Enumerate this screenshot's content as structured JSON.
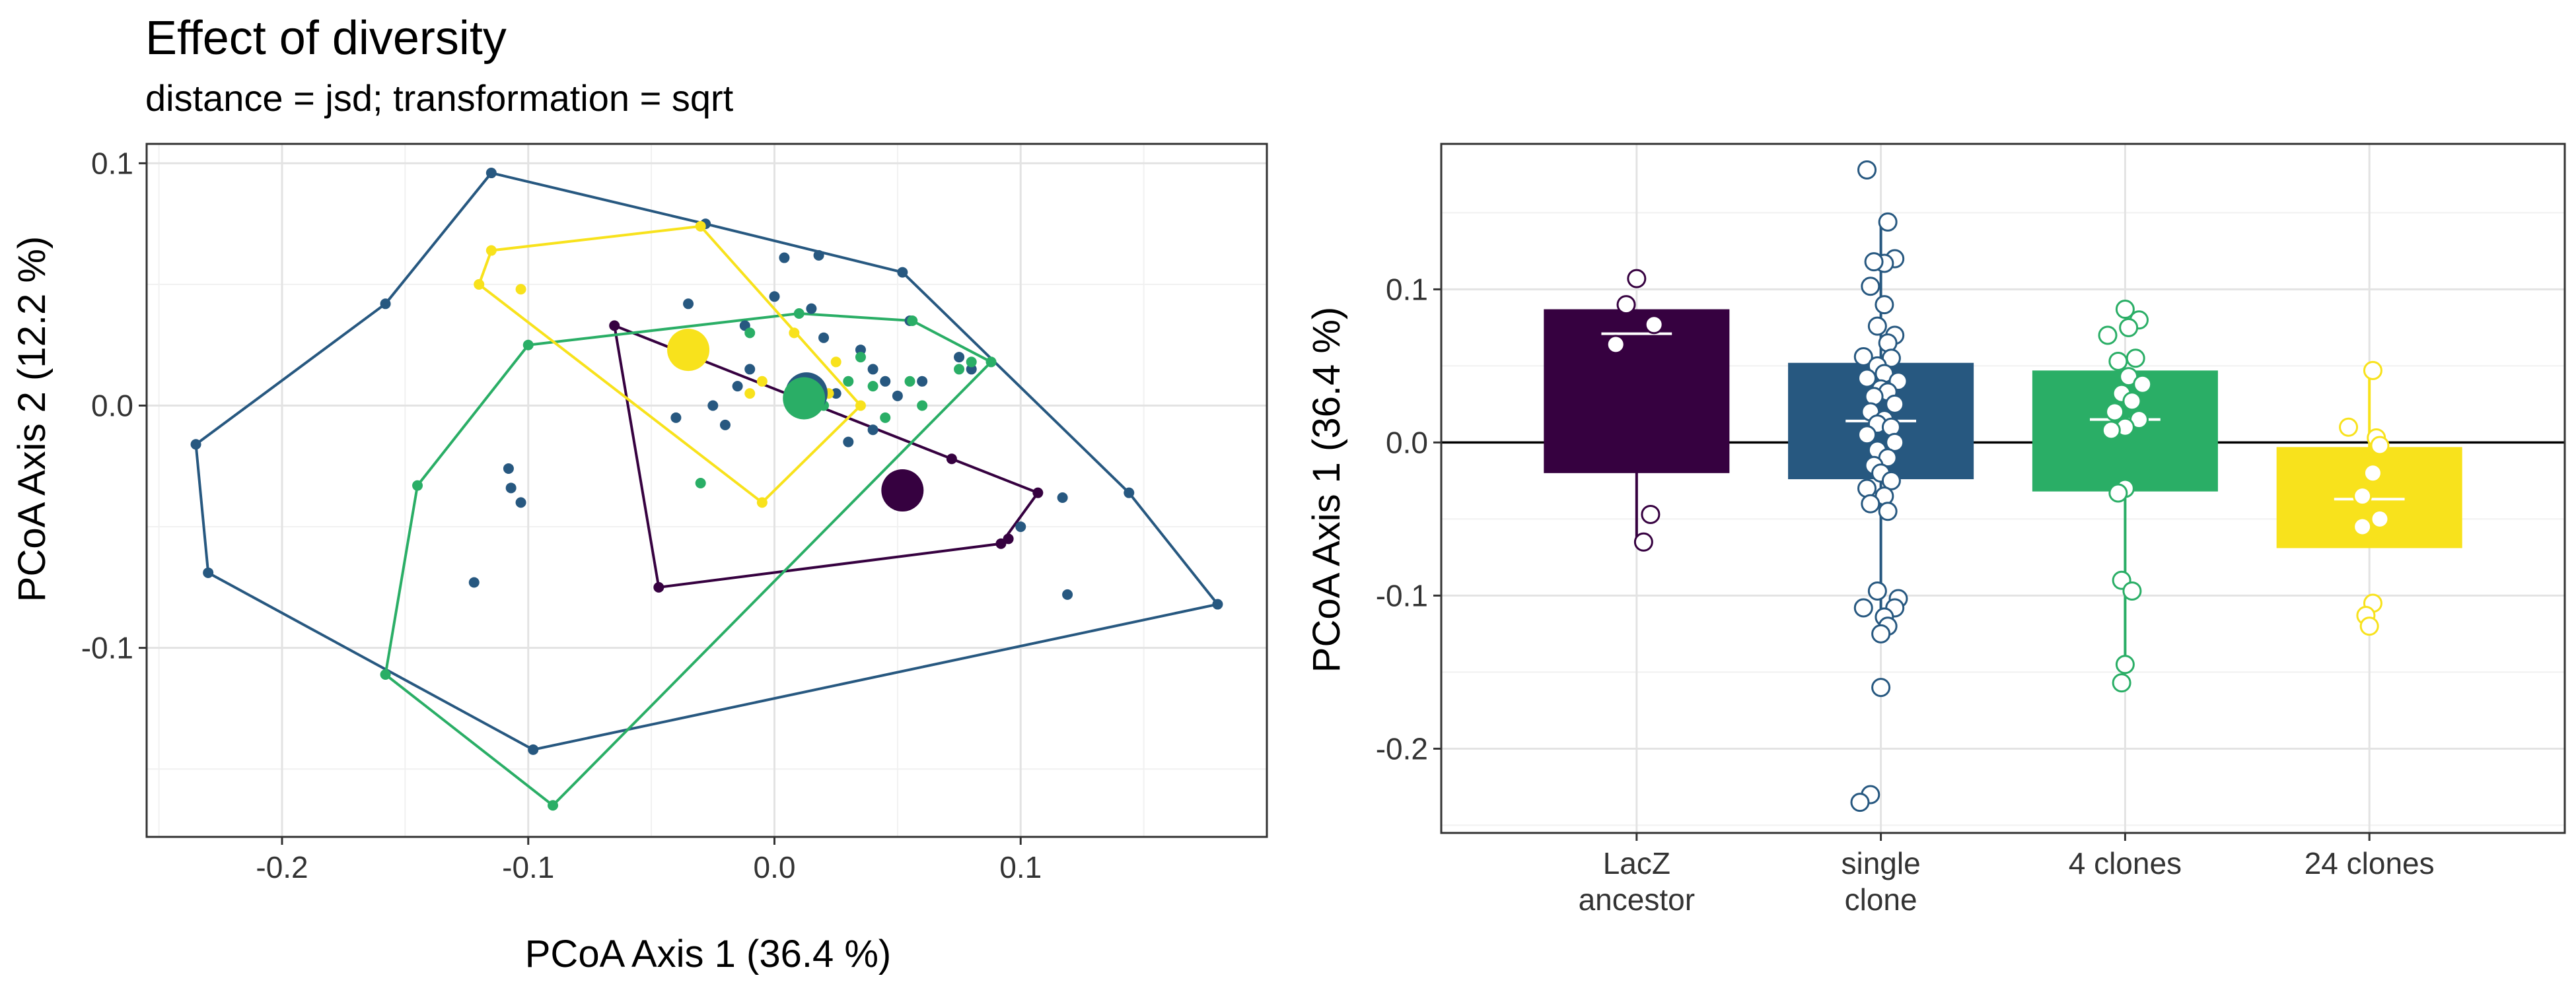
{
  "title": "Effect of diversity",
  "subtitle": "distance = jsd; transformation = sqrt",
  "colors": {
    "LacZ ancestor": "#360140",
    "single clone": "#275880",
    "4 clones": "#2aae66",
    "24 clones": "#f8e21c",
    "grid_major": "#e3e3e3",
    "grid_minor": "#f1f1f1",
    "panel_border": "#333333"
  },
  "chart_data": [
    {
      "type": "scatter",
      "xlabel": "PCoA Axis 1 (36.4 %)",
      "ylabel": "PCoA Axis 2 (12.2 %)",
      "xlim": [
        -0.255,
        0.2
      ],
      "ylim": [
        -0.178,
        0.108
      ],
      "xticks": [
        -0.2,
        -0.1,
        0.0,
        0.1
      ],
      "xtick_labels": [
        "-0.2",
        "-0.1",
        "0.0",
        "0.1"
      ],
      "yticks": [
        -0.1,
        0.0,
        0.1
      ],
      "ytick_labels": [
        "-0.1",
        "0.0",
        "0.1"
      ],
      "grid": true,
      "legend": "none",
      "series": [
        {
          "name": "LacZ ancestor",
          "points": [
            [
              -0.065,
              0.033
            ],
            [
              -0.047,
              -0.075
            ],
            [
              0.107,
              -0.036
            ],
            [
              0.092,
              -0.057
            ],
            [
              0.072,
              -0.022
            ],
            [
              0.095,
              -0.055
            ]
          ],
          "hull": [
            [
              -0.065,
              0.033
            ],
            [
              -0.047,
              -0.075
            ],
            [
              0.092,
              -0.057
            ],
            [
              0.107,
              -0.036
            ],
            [
              0.072,
              -0.022
            ]
          ],
          "centroid": [
            0.052,
            -0.035
          ]
        },
        {
          "name": "single clone",
          "points": [
            [
              -0.115,
              0.096
            ],
            [
              -0.158,
              0.042
            ],
            [
              -0.235,
              -0.016
            ],
            [
              -0.23,
              -0.069
            ],
            [
              -0.098,
              -0.142
            ],
            [
              0.18,
              -0.082
            ],
            [
              0.144,
              -0.036
            ],
            [
              0.052,
              0.055
            ],
            [
              -0.028,
              0.075
            ],
            [
              0.018,
              0.062
            ],
            [
              0.004,
              0.061
            ],
            [
              0.0,
              0.045
            ],
            [
              0.055,
              0.035
            ],
            [
              0.075,
              0.02
            ],
            [
              0.08,
              0.015
            ],
            [
              0.015,
              0.04
            ],
            [
              0.035,
              0.023
            ],
            [
              0.04,
              0.015
            ],
            [
              0.025,
              0.005
            ],
            [
              0.045,
              0.01
            ],
            [
              0.012,
              0.01
            ],
            [
              -0.015,
              0.008
            ],
            [
              -0.025,
              0.0
            ],
            [
              -0.04,
              -0.005
            ],
            [
              -0.02,
              -0.008
            ],
            [
              0.03,
              -0.015
            ],
            [
              -0.108,
              -0.026
            ],
            [
              -0.107,
              -0.034
            ],
            [
              -0.103,
              -0.04
            ],
            [
              -0.122,
              -0.073
            ],
            [
              -0.035,
              0.042
            ],
            [
              -0.012,
              0.033
            ],
            [
              0.05,
              0.004
            ],
            [
              0.117,
              -0.038
            ],
            [
              0.119,
              -0.078
            ],
            [
              0.1,
              -0.05
            ],
            [
              0.04,
              -0.01
            ],
            [
              0.06,
              0.01
            ],
            [
              0.02,
              0.028
            ],
            [
              -0.01,
              0.015
            ]
          ],
          "hull": [
            [
              -0.115,
              0.096
            ],
            [
              -0.028,
              0.075
            ],
            [
              0.052,
              0.055
            ],
            [
              0.144,
              -0.036
            ],
            [
              0.18,
              -0.082
            ],
            [
              -0.098,
              -0.142
            ],
            [
              -0.23,
              -0.069
            ],
            [
              -0.235,
              -0.016
            ],
            [
              -0.158,
              0.042
            ]
          ],
          "centroid": [
            0.013,
            0.005
          ]
        },
        {
          "name": "4 clones",
          "points": [
            [
              -0.1,
              0.025
            ],
            [
              -0.145,
              -0.033
            ],
            [
              -0.158,
              -0.111
            ],
            [
              -0.09,
              -0.165
            ],
            [
              0.088,
              0.018
            ],
            [
              0.056,
              0.035
            ],
            [
              0.01,
              0.038
            ],
            [
              0.035,
              0.02
            ],
            [
              -0.01,
              0.03
            ],
            [
              0.075,
              0.015
            ],
            [
              0.02,
              0.0
            ],
            [
              0.04,
              0.008
            ],
            [
              -0.03,
              -0.032
            ],
            [
              0.03,
              0.01
            ],
            [
              0.055,
              0.01
            ],
            [
              0.08,
              0.018
            ],
            [
              0.045,
              -0.005
            ],
            [
              0.06,
              0.0
            ]
          ],
          "hull": [
            [
              -0.1,
              0.025
            ],
            [
              0.01,
              0.038
            ],
            [
              0.056,
              0.035
            ],
            [
              0.088,
              0.018
            ],
            [
              -0.09,
              -0.165
            ],
            [
              -0.158,
              -0.111
            ],
            [
              -0.145,
              -0.033
            ]
          ],
          "centroid": [
            0.012,
            0.003
          ]
        },
        {
          "name": "24 clones",
          "points": [
            [
              -0.12,
              0.05
            ],
            [
              -0.115,
              0.064
            ],
            [
              -0.103,
              0.048
            ],
            [
              -0.03,
              0.074
            ],
            [
              -0.005,
              -0.04
            ],
            [
              0.022,
              0.005
            ],
            [
              0.035,
              0.0
            ],
            [
              -0.01,
              0.005
            ],
            [
              0.025,
              0.018
            ],
            [
              0.008,
              0.03
            ],
            [
              -0.005,
              0.01
            ]
          ],
          "hull": [
            [
              -0.12,
              0.05
            ],
            [
              -0.115,
              0.064
            ],
            [
              -0.03,
              0.074
            ],
            [
              0.035,
              0.0
            ],
            [
              -0.005,
              -0.04
            ]
          ],
          "centroid": [
            -0.035,
            0.023
          ]
        }
      ]
    },
    {
      "type": "bar",
      "xlabel": "",
      "ylabel": "PCoA Axis 1 (36.4 %)",
      "categories": [
        "LacZ\nancestor",
        "single\nclone",
        "4 clones",
        "24 clones"
      ],
      "ylim": [
        -0.255,
        0.195
      ],
      "yticks": [
        -0.2,
        -0.1,
        0.0,
        0.1
      ],
      "ytick_labels": [
        "-0.2",
        "-0.1",
        "0.0",
        "0.1"
      ],
      "grid": true,
      "legend": "none",
      "reference_line": 0.0,
      "boxes": [
        {
          "lower": -0.02,
          "upper": 0.087,
          "median": 0.071,
          "whisker_low": -0.063,
          "whisker_high": 0.087
        },
        {
          "lower": -0.024,
          "upper": 0.052,
          "median": 0.014,
          "whisker_low": -0.125,
          "whisker_high": 0.145
        },
        {
          "lower": -0.032,
          "upper": 0.047,
          "median": 0.015,
          "whisker_low": -0.145,
          "whisker_high": 0.047
        },
        {
          "lower": -0.069,
          "upper": -0.003,
          "median": -0.037,
          "whisker_low": -0.069,
          "whisker_high": 0.045
        }
      ],
      "points": [
        [
          [
            0.107,
            0.0
          ],
          [
            0.09,
            -0.15
          ],
          [
            0.077,
            0.25
          ],
          [
            0.064,
            -0.3
          ],
          [
            -0.047,
            0.2
          ],
          [
            -0.065,
            0.1
          ]
        ],
        [
          [
            0.178,
            -0.2
          ],
          [
            0.144,
            0.1
          ],
          [
            0.12,
            0.2
          ],
          [
            0.117,
            0.05
          ],
          [
            0.118,
            -0.1
          ],
          [
            0.102,
            -0.15
          ],
          [
            0.09,
            0.05
          ],
          [
            0.076,
            -0.05
          ],
          [
            0.07,
            0.2
          ],
          [
            0.065,
            0.1
          ],
          [
            0.056,
            -0.25
          ],
          [
            0.055,
            0.15
          ],
          [
            0.05,
            -0.05
          ],
          [
            0.045,
            0.05
          ],
          [
            0.042,
            -0.2
          ],
          [
            0.04,
            0.25
          ],
          [
            0.035,
            0.0
          ],
          [
            0.033,
            0.1
          ],
          [
            0.03,
            -0.1
          ],
          [
            0.025,
            0.2
          ],
          [
            0.02,
            -0.15
          ],
          [
            0.015,
            0.05
          ],
          [
            0.012,
            -0.05
          ],
          [
            0.01,
            0.15
          ],
          [
            0.005,
            -0.2
          ],
          [
            0.0,
            0.2
          ],
          [
            -0.005,
            -0.05
          ],
          [
            -0.01,
            0.1
          ],
          [
            -0.015,
            -0.1
          ],
          [
            -0.02,
            0.0
          ],
          [
            -0.025,
            0.15
          ],
          [
            -0.03,
            -0.2
          ],
          [
            -0.035,
            0.05
          ],
          [
            -0.04,
            -0.15
          ],
          [
            -0.045,
            0.1
          ],
          [
            -0.097,
            -0.05
          ],
          [
            -0.102,
            0.25
          ],
          [
            -0.108,
            0.2
          ],
          [
            -0.108,
            -0.25
          ],
          [
            -0.114,
            0.05
          ],
          [
            -0.12,
            0.1
          ],
          [
            -0.125,
            0.0
          ],
          [
            -0.16,
            0.0
          ],
          [
            -0.23,
            -0.15
          ],
          [
            -0.235,
            -0.3
          ]
        ],
        [
          [
            0.087,
            0.0
          ],
          [
            0.08,
            0.2
          ],
          [
            0.075,
            0.05
          ],
          [
            0.07,
            -0.25
          ],
          [
            0.055,
            0.15
          ],
          [
            0.053,
            -0.1
          ],
          [
            0.043,
            0.05
          ],
          [
            0.038,
            0.25
          ],
          [
            0.032,
            -0.05
          ],
          [
            0.027,
            0.1
          ],
          [
            0.02,
            -0.15
          ],
          [
            0.015,
            0.2
          ],
          [
            0.01,
            0.0
          ],
          [
            0.008,
            -0.2
          ],
          [
            -0.03,
            0.0
          ],
          [
            -0.033,
            -0.1
          ],
          [
            -0.09,
            -0.05
          ],
          [
            -0.097,
            0.1
          ],
          [
            -0.145,
            0.0
          ],
          [
            -0.157,
            -0.05
          ]
        ],
        [
          [
            0.047,
            0.05
          ],
          [
            0.01,
            -0.3
          ],
          [
            0.003,
            0.1
          ],
          [
            -0.002,
            0.15
          ],
          [
            -0.02,
            0.05
          ],
          [
            -0.035,
            -0.1
          ],
          [
            -0.05,
            0.15
          ],
          [
            -0.055,
            -0.1
          ],
          [
            -0.105,
            0.05
          ],
          [
            -0.113,
            -0.05
          ],
          [
            -0.12,
            0.0
          ]
        ]
      ]
    }
  ]
}
